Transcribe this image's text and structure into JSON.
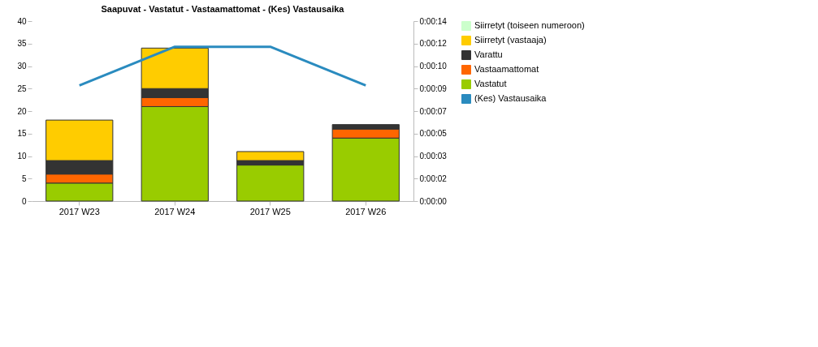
{
  "chart_data": {
    "type": "bar",
    "title": "Saapuvat - Vastatut - Vastaamattomat - (Kes) Vastausaika",
    "stacked": true,
    "categories": [
      "2017 W23",
      "2017 W24",
      "2017 W25",
      "2017 W26"
    ],
    "series": [
      {
        "name": "Vastatut",
        "color": "#99cc00",
        "values": [
          4,
          21,
          8,
          14
        ]
      },
      {
        "name": "Vastaamattomat",
        "color": "#ff6600",
        "values": [
          2,
          2,
          0,
          2
        ]
      },
      {
        "name": "Varattu",
        "color": "#333333",
        "values": [
          3,
          2,
          1,
          1
        ]
      },
      {
        "name": "Siirretyt (vastaaja)",
        "color": "#ffcc00",
        "values": [
          9,
          9,
          2,
          0
        ]
      },
      {
        "name": "Siirretyt (toiseen numeroon)",
        "color": "#ccffcc",
        "values": [
          null,
          null,
          null,
          null
        ]
      },
      {
        "name": "(Kes) Vastausaika",
        "type": "line",
        "axis": "y2",
        "color": "#2a8bbf",
        "values": [
          9,
          12,
          12,
          9
        ]
      }
    ],
    "ylim": [
      0,
      40
    ],
    "yticks": [
      0,
      5,
      10,
      15,
      20,
      25,
      30,
      35,
      40
    ],
    "y2lim": [
      0,
      14
    ],
    "y2ticks": [
      {
        "value": 0,
        "label": "0:00:00"
      },
      {
        "value": 1.75,
        "label": "0:00:02"
      },
      {
        "value": 3.5,
        "label": "0:00:03"
      },
      {
        "value": 5.25,
        "label": "0:00:05"
      },
      {
        "value": 7,
        "label": "0:00:07"
      },
      {
        "value": 8.75,
        "label": "0:00:09"
      },
      {
        "value": 10.5,
        "label": "0:00:10"
      },
      {
        "value": 12.25,
        "label": "0:00:12"
      },
      {
        "value": 14,
        "label": "0:00:14"
      }
    ],
    "grid": false,
    "legend": "right",
    "line_style": "solid",
    "marker": "none"
  }
}
